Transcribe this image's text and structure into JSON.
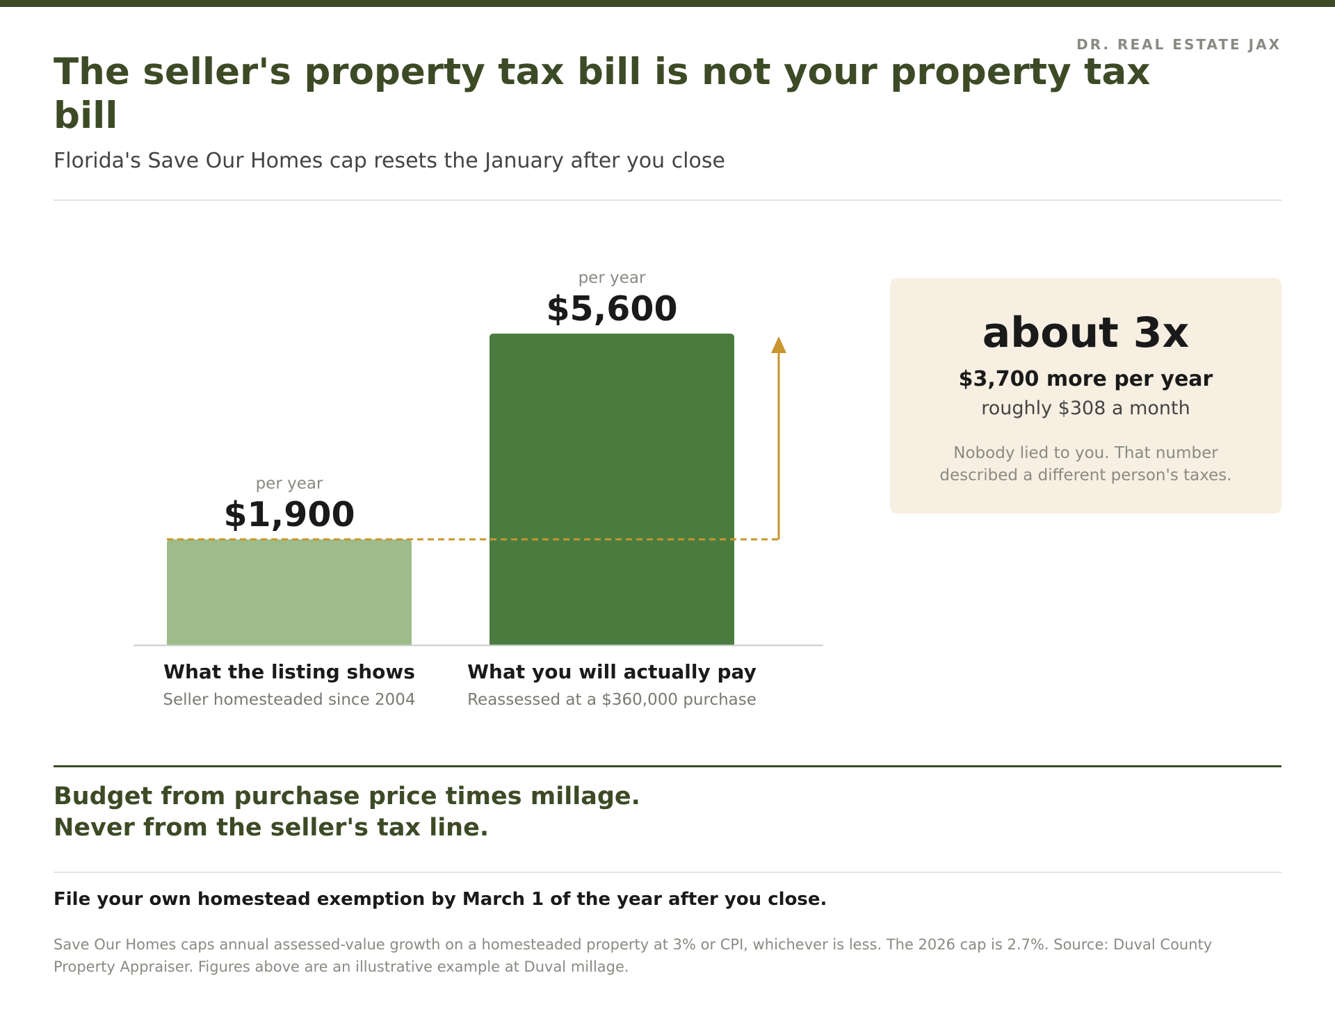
{
  "brand": "DR. REAL ESTATE JAX",
  "header": {
    "title": "The seller's property tax bill is not your property tax bill",
    "subtitle": "Florida's Save Our Homes cap resets the January after you close"
  },
  "chart_data": {
    "type": "bar",
    "categories": [
      "What the listing shows",
      "What you will actually pay"
    ],
    "category_subtitles": [
      "Seller homesteaded since 2004",
      "Reassessed at a $360,000 purchase"
    ],
    "values": [
      1900,
      5600
    ],
    "value_labels": [
      "$1,900",
      "$5,600"
    ],
    "unit_label": "per year",
    "ylim": [
      0,
      5600
    ],
    "reference_line": {
      "value": 1900,
      "style": "dashed"
    },
    "colors": {
      "bar_listing": "#9dbc8a",
      "bar_actual": "#4a7c3f",
      "reference": "#c8962e",
      "axis": "#c9c9c9"
    }
  },
  "callout": {
    "multiplier": "about 3x",
    "difference": "$3,700 more per year",
    "monthly": "roughly $308 a month",
    "note": "Nobody lied to you. That number described a different person's taxes."
  },
  "footer": {
    "budget_line1": "Budget from purchase price times millage.",
    "budget_line2": "Never from the seller's tax line.",
    "file_note": "File your own homestead exemption by March 1 of the year after you close.",
    "source": "Save Our Homes caps annual assessed-value growth on a homesteaded property at 3% or CPI, whichever is less. The 2026 cap is 2.7%. Source: Duval County Property Appraiser. Figures above are an illustrative example at Duval millage."
  },
  "colors": {
    "brand_green": "#3c4a26",
    "callout_bg": "#f7efe2"
  }
}
